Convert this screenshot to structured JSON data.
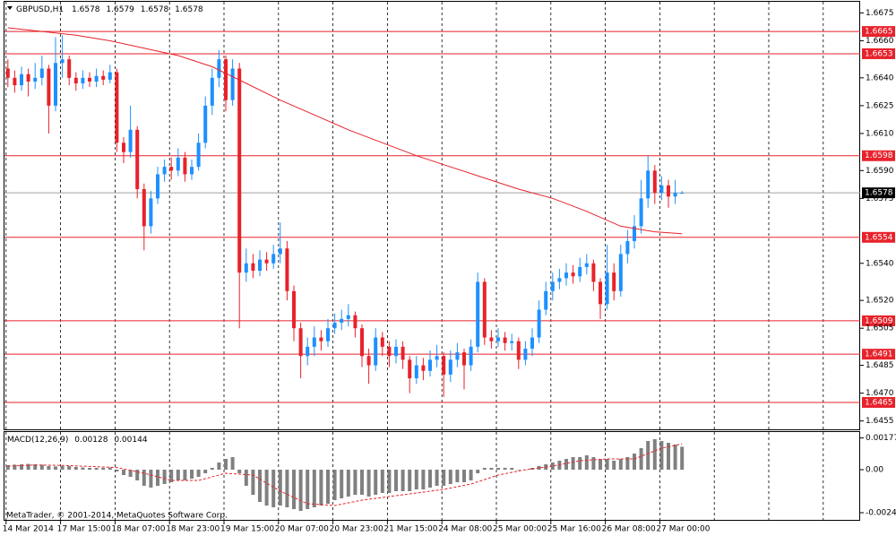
{
  "chart_data": {
    "type": "candlestick",
    "symbol": "GBPUSD,H1",
    "categories": [
      "14 Mar 2014",
      null,
      null,
      null,
      null,
      null,
      null,
      null,
      "17 Mar 15:00",
      null,
      null,
      null,
      null,
      null,
      null,
      null,
      "18 Mar 07:00",
      null,
      null,
      null,
      null,
      null,
      null,
      null,
      "18 Mar 23:00",
      null,
      null,
      null,
      null,
      null,
      null,
      null,
      "19 Mar 15:00",
      null,
      null,
      null,
      null,
      null,
      null,
      null,
      "20 Mar 07:00",
      null,
      null,
      null,
      null,
      null,
      null,
      null,
      "20 Mar 23:00",
      null,
      null,
      null,
      null,
      null,
      null,
      null,
      "21 Mar 15:00",
      null,
      null,
      null,
      null,
      null,
      null,
      null,
      "24 Mar 08:00",
      null,
      null,
      null,
      null,
      null,
      null,
      null,
      "25 Mar 00:00",
      null,
      null,
      null,
      null,
      null,
      null,
      null,
      "25 Mar 16:00",
      null,
      null,
      null,
      null,
      null,
      null,
      null,
      "26 Mar 08:00",
      null,
      null,
      null,
      null,
      null,
      null,
      null,
      "27 Mar 00:00",
      null,
      null,
      null
    ],
    "open": [
      1.6645,
      1.664,
      1.6636,
      1.6642,
      1.6638,
      1.664,
      1.6645,
      1.6625,
      1.6648,
      1.665,
      1.664,
      1.6637,
      1.664,
      1.6638,
      1.6641,
      1.6639,
      1.6643,
      1.6605,
      1.66,
      1.6612,
      1.658,
      1.656,
      1.6575,
      1.6588,
      1.6592,
      1.659,
      1.6597,
      1.6588,
      1.6592,
      1.6605,
      1.6625,
      1.664,
      1.665,
      1.6628,
      1.6645,
      1.6535,
      1.654,
      1.6536,
      1.6542,
      1.654,
      1.6545,
      1.6548,
      1.6525,
      1.6505,
      1.649,
      1.6495,
      1.65,
      1.6498,
      1.6505,
      1.6508,
      1.651,
      1.6512,
      1.6505,
      1.649,
      1.6485,
      1.65,
      1.6495,
      1.649,
      1.6495,
      1.6488,
      1.6478,
      1.6485,
      1.6482,
      1.6488,
      1.649,
      1.648,
      1.6488,
      1.6492,
      1.6485,
      1.6495,
      1.653,
      1.65,
      1.6498,
      1.65,
      1.6497,
      1.6498,
      1.6488,
      1.6494,
      1.65,
      1.6515,
      1.6525,
      1.653,
      1.6532,
      1.6535,
      1.6533,
      1.6538,
      1.654,
      1.653,
      1.6518,
      1.6535,
      1.6525,
      1.6545,
      1.6552,
      1.656,
      1.6575,
      1.659,
      1.6578,
      1.6582,
      1.6576,
      1.6578
    ],
    "high": [
      1.665,
      1.6644,
      1.6646,
      1.6645,
      1.6648,
      1.6652,
      1.6647,
      1.6662,
      1.6663,
      1.6652,
      1.6643,
      1.6644,
      1.6643,
      1.6645,
      1.6644,
      1.6647,
      1.6645,
      1.6608,
      1.6625,
      1.6614,
      1.6583,
      1.6579,
      1.6592,
      1.6596,
      1.6597,
      1.6602,
      1.66,
      1.6596,
      1.661,
      1.663,
      1.6645,
      1.6655,
      1.6652,
      1.665,
      1.6648,
      1.6548,
      1.6545,
      1.6547,
      1.6546,
      1.655,
      1.6562,
      1.6552,
      1.6528,
      1.6508,
      1.65,
      1.6506,
      1.6504,
      1.651,
      1.6513,
      1.6515,
      1.6518,
      1.6514,
      1.6507,
      1.6494,
      1.6505,
      1.6503,
      1.6498,
      1.6499,
      1.6498,
      1.649,
      1.649,
      1.6489,
      1.6493,
      1.6496,
      1.6492,
      1.6493,
      1.6497,
      1.6494,
      1.6499,
      1.6535,
      1.6532,
      1.6504,
      1.6505,
      1.6503,
      1.6502,
      1.65,
      1.6498,
      1.6505,
      1.652,
      1.653,
      1.6535,
      1.6537,
      1.654,
      1.6539,
      1.6543,
      1.6545,
      1.6542,
      1.6532,
      1.655,
      1.654,
      1.655,
      1.6558,
      1.6566,
      1.6585,
      1.6598,
      1.6593,
      1.6587,
      1.6585,
      1.6585,
      1.6579
    ],
    "low": [
      1.6635,
      1.6632,
      1.6633,
      1.663,
      1.6634,
      1.6636,
      1.661,
      1.6622,
      1.664,
      1.6636,
      1.6633,
      1.6634,
      1.6635,
      1.6635,
      1.6636,
      1.6637,
      1.66,
      1.6594,
      1.6597,
      1.6575,
      1.6547,
      1.6556,
      1.6572,
      1.6584,
      1.6585,
      1.6587,
      1.6584,
      1.6585,
      1.659,
      1.6602,
      1.662,
      1.6635,
      1.6622,
      1.6625,
      1.6505,
      1.653,
      1.6532,
      1.6533,
      1.6536,
      1.6537,
      1.654,
      1.652,
      1.6498,
      1.6478,
      1.6485,
      1.649,
      1.6493,
      1.6495,
      1.6502,
      1.6504,
      1.6506,
      1.65,
      1.6484,
      1.6475,
      1.6482,
      1.649,
      1.6484,
      1.6486,
      1.6483,
      1.647,
      1.6475,
      1.6477,
      1.6479,
      1.6484,
      1.6468,
      1.6476,
      1.6484,
      1.6472,
      1.6482,
      1.6492,
      1.6496,
      1.6494,
      1.6495,
      1.6493,
      1.6493,
      1.6483,
      1.6485,
      1.649,
      1.6497,
      1.6512,
      1.652,
      1.6526,
      1.6528,
      1.6529,
      1.653,
      1.6534,
      1.6525,
      1.651,
      1.6515,
      1.652,
      1.6522,
      1.654,
      1.6548,
      1.6556,
      1.657,
      1.6572,
      1.6574,
      1.657,
      1.6572,
      1.6578
    ],
    "close": [
      1.664,
      1.6636,
      1.6642,
      1.6638,
      1.664,
      1.6645,
      1.6625,
      1.6648,
      1.665,
      1.664,
      1.6637,
      1.664,
      1.6638,
      1.6641,
      1.6639,
      1.6643,
      1.6605,
      1.66,
      1.6612,
      1.658,
      1.656,
      1.6575,
      1.6588,
      1.6592,
      1.659,
      1.6597,
      1.6588,
      1.6592,
      1.6605,
      1.6625,
      1.664,
      1.665,
      1.6628,
      1.6645,
      1.6535,
      1.654,
      1.6536,
      1.6542,
      1.654,
      1.6545,
      1.6548,
      1.6525,
      1.6505,
      1.649,
      1.6495,
      1.65,
      1.6498,
      1.6505,
      1.6508,
      1.651,
      1.6512,
      1.6505,
      1.649,
      1.6485,
      1.65,
      1.6495,
      1.649,
      1.6495,
      1.6488,
      1.6478,
      1.6485,
      1.6482,
      1.6488,
      1.649,
      1.648,
      1.6488,
      1.6492,
      1.6485,
      1.6495,
      1.653,
      1.65,
      1.6498,
      1.65,
      1.6497,
      1.6498,
      1.6488,
      1.6494,
      1.65,
      1.6515,
      1.6525,
      1.653,
      1.6532,
      1.6535,
      1.6533,
      1.6538,
      1.654,
      1.653,
      1.6518,
      1.6535,
      1.6525,
      1.6545,
      1.6552,
      1.656,
      1.6575,
      1.659,
      1.6578,
      1.6582,
      1.6576,
      1.6578,
      1.6578
    ],
    "up_color": "#1e90ff",
    "down_color": "#e8222b",
    "ylim": [
      1.645,
      1.6681
    ],
    "yticks": [
      1.6675,
      {
        "value": 1.666,
        "label": "1.6660"
      },
      {
        "value": 1.664,
        "label": "1.6640"
      },
      1.6625,
      {
        "value": 1.661,
        "label": "1.6610"
      },
      {
        "value": 1.659,
        "label": "1.6590"
      },
      1.6575,
      {
        "value": 1.654,
        "label": "1.6540"
      },
      {
        "value": 1.652,
        "label": "1.6520"
      },
      1.6505,
      1.6485,
      {
        "value": 1.647,
        "label": "1.6470"
      },
      1.6455
    ],
    "levels": [
      1.6665,
      1.6653,
      1.6598,
      1.6554,
      1.6509,
      1.6491,
      1.6465
    ],
    "level_color": "#e8222b",
    "ma": {
      "color": "#e8222b",
      "x": [
        0,
        5,
        10,
        15,
        20,
        25,
        30,
        35,
        40,
        45,
        50,
        55,
        60,
        65,
        70,
        75,
        80,
        85,
        90,
        95,
        99
      ],
      "values": [
        1.6667,
        1.6665,
        1.6663,
        1.666,
        1.6656,
        1.6652,
        1.6646,
        1.6637,
        1.6628,
        1.662,
        1.6612,
        1.6605,
        1.6598,
        1.6592,
        1.6586,
        1.658,
        1.6575,
        1.6568,
        1.656,
        1.6557,
        1.6556
      ]
    },
    "macd": {
      "label": "MACD(12,26,9)",
      "color": "#808080",
      "values": [
        0.00025,
        0.00028,
        0.0003,
        0.00032,
        0.0003,
        0.00028,
        0.0002,
        0.00018,
        0.0002,
        0.0002,
        0.00015,
        0.00012,
        0.0001,
        0.0001,
        0.0001,
        0.00012,
        -0.0001,
        -0.0003,
        -0.0004,
        -0.0006,
        -0.0009,
        -0.001,
        -0.0009,
        -0.0008,
        -0.0007,
        -0.0006,
        -0.0006,
        -0.0005,
        -0.0004,
        -0.0002,
        0.0001,
        0.0004,
        0.0006,
        0.0007,
        -0.0002,
        -0.0009,
        -0.0014,
        -0.0018,
        -0.002,
        -0.0021,
        -0.002,
        -0.0021,
        -0.0022,
        -0.0023,
        -0.0022,
        -0.0021,
        -0.002,
        -0.0019,
        -0.0017,
        -0.0016,
        -0.0015,
        -0.0014,
        -0.0014,
        -0.0015,
        -0.0014,
        -0.0013,
        -0.0013,
        -0.0012,
        -0.0012,
        -0.0012,
        -0.0011,
        -0.0011,
        -0.001,
        -0.0009,
        -0.0009,
        -0.0008,
        -0.0007,
        -0.0007,
        -0.0006,
        -0.0002,
        0.0001,
        0.0001,
        0.0001,
        0.0001,
        0.0001,
        0,
        0,
        0.0001,
        0.0002,
        0.0003,
        0.0004,
        0.0005,
        0.0006,
        0.0007,
        0.0007,
        0.0008,
        0.0007,
        0.0006,
        0.0006,
        0.0005,
        0.0006,
        0.0007,
        0.0009,
        0.0012,
        0.0016,
        0.0017,
        0.0016,
        0.0015,
        0.0014,
        0.00128
      ],
      "signal": {
        "color": "#e8222b",
        "x": [
          0,
          4,
          8,
          12,
          16,
          20,
          24,
          28,
          32,
          36,
          40,
          44,
          48,
          52,
          56,
          60,
          64,
          68,
          72,
          76,
          80,
          84,
          88,
          92,
          96,
          99
        ],
        "values": [
          0.0002,
          0.00026,
          0.00024,
          0.00018,
          0.00012,
          -0.0002,
          -0.0006,
          -0.0006,
          -0.0002,
          -0.0003,
          -0.0012,
          -0.0019,
          -0.002,
          -0.0017,
          -0.0015,
          -0.0013,
          -0.0011,
          -0.0008,
          -0.0003,
          0,
          0.0002,
          0.0005,
          0.0006,
          0.0006,
          0.0012,
          0.00144
        ]
      },
      "ylim": [
        -0.0029,
        0.0021
      ],
      "yticks": [
        0.00177,
        {
          "value": 0,
          "label": "0.00"
        },
        -0.0024
      ]
    },
    "copyright": "MetaTrader, © 2001-2014, MetaQuotes Software Corp."
  }
}
